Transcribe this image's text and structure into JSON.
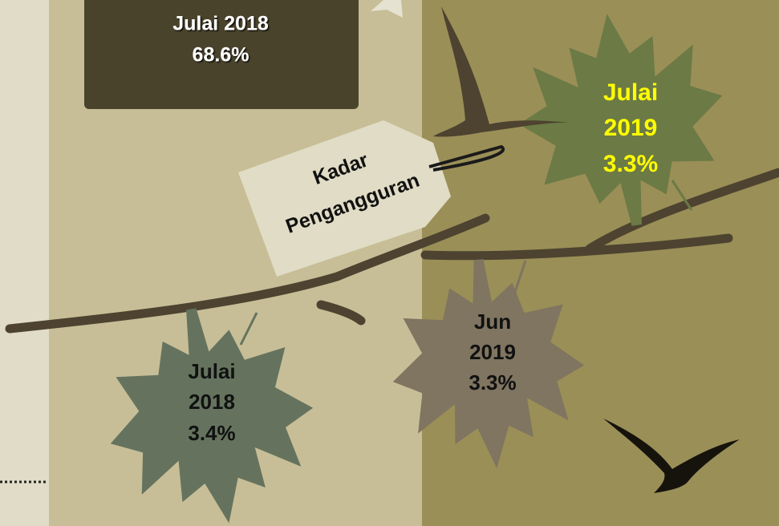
{
  "banner": {
    "line1": "Julai 2018",
    "line2": "68.6%"
  },
  "tag": {
    "line1": "Kadar",
    "line2": "Pengangguran"
  },
  "leaves": [
    {
      "lines": [
        "Julai",
        "2019",
        "3.3%"
      ]
    },
    {
      "lines": [
        "Jun",
        "2019",
        "3.3%"
      ]
    },
    {
      "lines": [
        "Julai",
        "2018",
        "3.4%"
      ]
    }
  ]
}
